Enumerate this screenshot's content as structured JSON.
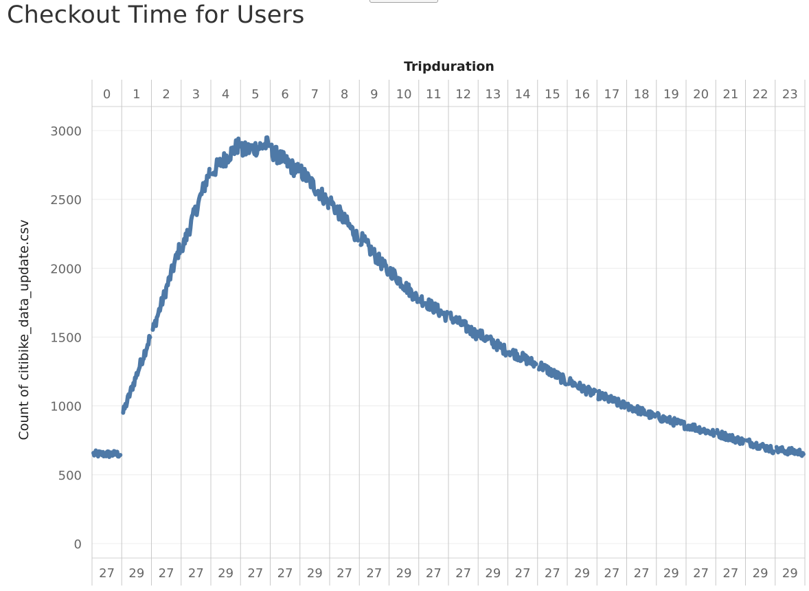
{
  "page": {
    "title": "Checkout Time for Users"
  },
  "chart_data": {
    "type": "line",
    "title": "Checkout Time for Users",
    "column_header": "Tripduration",
    "ylabel": "Count of citibike_data_update.csv",
    "xlabel": "",
    "ylim": [
      0,
      3200
    ],
    "yticks": [
      0,
      500,
      1000,
      1500,
      2000,
      2500,
      3000
    ],
    "grid": true,
    "columns": [
      "0",
      "1",
      "2",
      "3",
      "4",
      "5",
      "6",
      "7",
      "8",
      "9",
      "10",
      "11",
      "12",
      "13",
      "14",
      "15",
      "16",
      "17",
      "18",
      "19",
      "20",
      "21",
      "22",
      "23"
    ],
    "column_footer": [
      "27",
      "29",
      "27",
      "27",
      "29",
      "27",
      "27",
      "29",
      "27",
      "27",
      "29",
      "27",
      "27",
      "29",
      "27",
      "27",
      "29",
      "27",
      "27",
      "29",
      "27",
      "27",
      "29",
      "29"
    ],
    "series": [
      {
        "color": "#4e79a7",
        "noise": 40,
        "hours_start": [
          650,
          950,
          1550,
          2150,
          2700,
          2850,
          2850,
          2700,
          2480,
          2220,
          1980,
          1780,
          1650,
          1520,
          1400,
          1300,
          1180,
          1080,
          1000,
          920,
          860,
          800,
          740,
          680
        ],
        "hours_end": [
          650,
          1500,
          2150,
          2700,
          2900,
          2900,
          2700,
          2480,
          2220,
          1980,
          1780,
          1650,
          1520,
          1400,
          1300,
          1180,
          1080,
          1000,
          920,
          860,
          800,
          740,
          680,
          660
        ]
      }
    ]
  }
}
